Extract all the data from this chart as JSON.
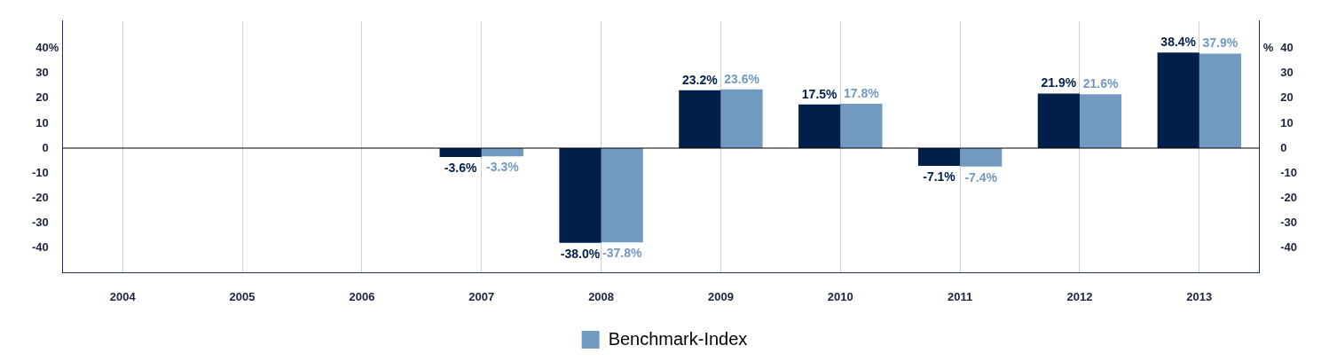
{
  "chart_data": {
    "type": "bar",
    "categories": [
      "2004",
      "2005",
      "2006",
      "2007",
      "2008",
      "2009",
      "2010",
      "2011",
      "2012",
      "2013"
    ],
    "series": [
      {
        "color": "#001f4b",
        "values": [
          null,
          null,
          null,
          -3.6,
          -38.0,
          23.2,
          17.5,
          -7.1,
          21.9,
          38.4
        ],
        "value_labels": [
          null,
          null,
          null,
          "-3.6%",
          "-38.0%",
          "23.2%",
          "17.5%",
          "-7.1%",
          "21.9%",
          "38.4%"
        ]
      },
      {
        "name": "Benchmark-Index",
        "color": "#7299bf",
        "values": [
          null,
          null,
          null,
          -3.3,
          -37.8,
          23.6,
          17.8,
          -7.4,
          21.6,
          37.9
        ],
        "value_labels": [
          null,
          null,
          null,
          "-3.3%",
          "-37.8%",
          "23.6%",
          "17.8%",
          "-7.4%",
          "21.6%",
          "37.9%"
        ]
      }
    ],
    "ylim": [
      -50,
      51
    ],
    "yticks": [
      -40,
      -30,
      -20,
      -10,
      0,
      10,
      20,
      30,
      40
    ],
    "y2lim": [
      -50,
      51
    ],
    "y2ticks": [
      -40,
      -30,
      -20,
      -10,
      0,
      10,
      20,
      30,
      40
    ],
    "ylabel": "%",
    "y2label": "%",
    "ref_lines": [
      {
        "axis": "y",
        "value": 0,
        "color": "#000000"
      }
    ],
    "grid": "x",
    "legend": "bottom"
  }
}
